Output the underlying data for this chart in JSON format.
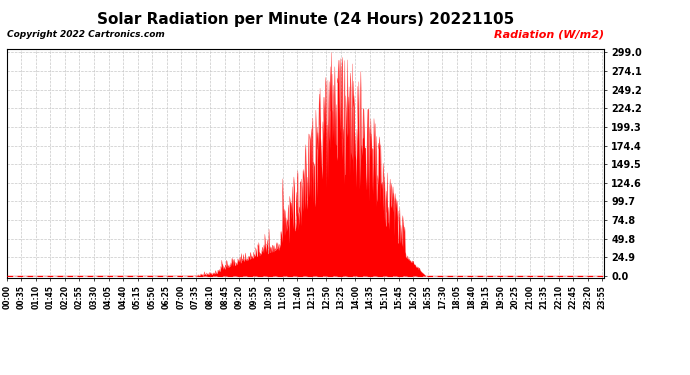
{
  "title": "Solar Radiation per Minute (24 Hours) 20221105",
  "ylabel": "Radiation (W/m2)",
  "copyright": "Copyright 2022 Cartronics.com",
  "ylim": [
    0.0,
    299.0
  ],
  "yticks": [
    0.0,
    24.9,
    49.8,
    74.8,
    99.7,
    124.6,
    149.5,
    174.4,
    199.3,
    224.2,
    249.2,
    274.1,
    299.0
  ],
  "fill_color": "#ff0000",
  "line_color": "#ff0000",
  "bg_color": "#ffffff",
  "grid_color": "#c8c8c8",
  "dashed_line_color": "#ff0000",
  "title_fontsize": 11,
  "ylabel_color": "#ff0000",
  "copyright_color": "#000000",
  "total_minutes": 1440,
  "tick_interval": 35
}
